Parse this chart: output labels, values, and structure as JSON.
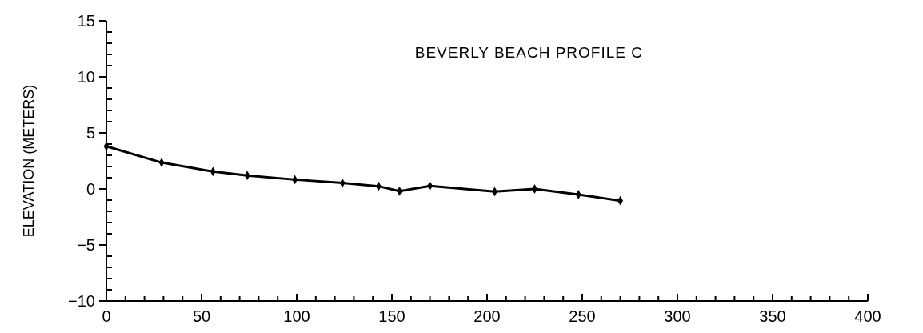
{
  "chart_data": {
    "type": "line",
    "title": "BEVERLY BEACH PROFILE C",
    "ylabel": "ELEVATION (METERS)",
    "x": [
      0,
      29,
      56,
      74,
      99,
      124,
      143,
      154,
      170,
      204,
      225,
      248,
      270
    ],
    "series": [
      {
        "color": "#000000",
        "values": [
          3.8,
          2.35,
          1.55,
          1.2,
          0.83,
          0.53,
          0.24,
          -0.2,
          0.27,
          -0.24,
          0,
          -0.5,
          -1.05
        ]
      }
    ],
    "xlim": [
      0,
      400
    ],
    "ylim": [
      -10,
      15
    ],
    "xticks": [
      0,
      {
        "value": 10,
        "label": null
      },
      {
        "value": 20,
        "label": null
      },
      {
        "value": 30,
        "label": null
      },
      {
        "value": 40,
        "label": null
      },
      50,
      {
        "value": 60,
        "label": null
      },
      {
        "value": 70,
        "label": null
      },
      {
        "value": 80,
        "label": null
      },
      {
        "value": 90,
        "label": null
      },
      100,
      {
        "value": 110,
        "label": null
      },
      {
        "value": 120,
        "label": null
      },
      {
        "value": 130,
        "label": null
      },
      {
        "value": 140,
        "label": null
      },
      150,
      {
        "value": 160,
        "label": null
      },
      {
        "value": 170,
        "label": null
      },
      {
        "value": 180,
        "label": null
      },
      {
        "value": 190,
        "label": null
      },
      200,
      {
        "value": 210,
        "label": null
      },
      {
        "value": 220,
        "label": null
      },
      {
        "value": 230,
        "label": null
      },
      {
        "value": 240,
        "label": null
      },
      250,
      {
        "value": 260,
        "label": null
      },
      {
        "value": 270,
        "label": null
      },
      {
        "value": 280,
        "label": null
      },
      {
        "value": 290,
        "label": null
      },
      300,
      {
        "value": 310,
        "label": null
      },
      {
        "value": 320,
        "label": null
      },
      {
        "value": 330,
        "label": null
      },
      {
        "value": 340,
        "label": null
      },
      350,
      {
        "value": 360,
        "label": null
      },
      {
        "value": 370,
        "label": null
      },
      {
        "value": 380,
        "label": null
      },
      {
        "value": 390,
        "label": null
      },
      400
    ],
    "yticks": [
      {
        "value": -10,
        "label": "−10"
      },
      {
        "value": -9,
        "label": null
      },
      {
        "value": -8,
        "label": null
      },
      {
        "value": -7,
        "label": null
      },
      {
        "value": -6,
        "label": null
      },
      {
        "value": -5,
        "label": "−5"
      },
      {
        "value": -4,
        "label": null
      },
      {
        "value": -3,
        "label": null
      },
      {
        "value": -2,
        "label": null
      },
      {
        "value": -1,
        "label": null
      },
      0,
      {
        "value": 1,
        "label": null
      },
      {
        "value": 2,
        "label": null
      },
      {
        "value": 3,
        "label": null
      },
      {
        "value": 4,
        "label": null
      },
      5,
      {
        "value": 6,
        "label": null
      },
      {
        "value": 7,
        "label": null
      },
      {
        "value": 8,
        "label": null
      },
      {
        "value": 9,
        "label": null
      },
      10,
      {
        "value": 11,
        "label": null
      },
      {
        "value": 12,
        "label": null
      },
      {
        "value": 13,
        "label": null
      },
      {
        "value": 14,
        "label": null
      },
      15
    ],
    "marker": "diamond",
    "line_style": "solid",
    "grid": false
  }
}
